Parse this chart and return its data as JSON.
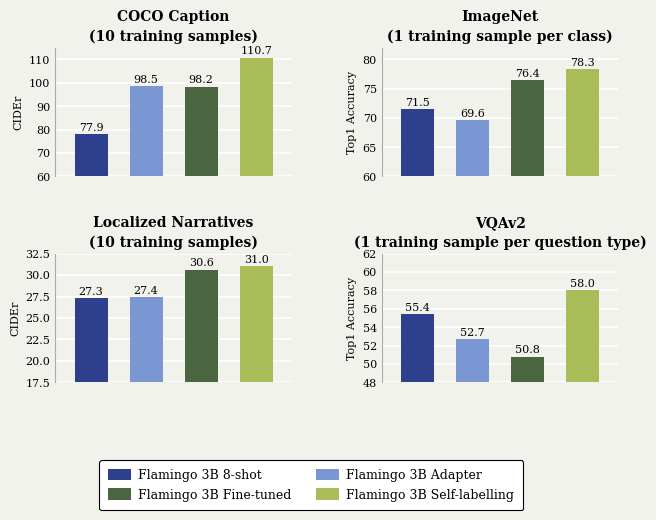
{
  "subplots": [
    {
      "title": "COCO Caption",
      "subtitle": "(10 training samples)",
      "ylabel": "CIDEr",
      "ylim": [
        60,
        115
      ],
      "yticks": [
        60,
        70,
        80,
        90,
        100,
        110
      ],
      "values": [
        77.9,
        98.5,
        98.2,
        110.7
      ],
      "value_labels": [
        "77.9",
        "98.5",
        "98.2",
        "110.7"
      ]
    },
    {
      "title": "ImageNet",
      "subtitle": "(1 training sample per class)",
      "ylabel": "Top1 Accuracy",
      "ylim": [
        60,
        82
      ],
      "yticks": [
        60,
        65,
        70,
        75,
        80
      ],
      "values": [
        71.5,
        69.6,
        76.4,
        78.3
      ],
      "value_labels": [
        "71.5",
        "69.6",
        "76.4",
        "78.3"
      ]
    },
    {
      "title": "Localized Narratives",
      "subtitle": "(10 training samples)",
      "ylabel": "CIDEr",
      "ylim": [
        17.5,
        32.5
      ],
      "yticks": [
        17.5,
        20.0,
        22.5,
        25.0,
        27.5,
        30.0,
        32.5
      ],
      "values": [
        27.3,
        27.4,
        30.6,
        31.0
      ],
      "value_labels": [
        "27.3",
        "27.4",
        "30.6",
        "31.0"
      ]
    },
    {
      "title": "VQAv2",
      "subtitle": "(1 training sample per question type)",
      "ylabel": "Top1 Accuracy",
      "ylim": [
        48,
        62
      ],
      "yticks": [
        48,
        50,
        52,
        54,
        56,
        58,
        60,
        62
      ],
      "values": [
        55.4,
        52.7,
        50.8,
        58.0
      ],
      "value_labels": [
        "55.4",
        "52.7",
        "50.8",
        "58.0"
      ]
    }
  ],
  "bar_colors": [
    "#2e3f8e",
    "#7b97d3",
    "#4a6640",
    "#a8bc58"
  ],
  "legend_labels": [
    "Flamingo 3B 8-shot",
    "Flamingo 3B Adapter",
    "Flamingo 3B Fine-tuned",
    "Flamingo 3B Self-labelling"
  ],
  "background_color": "#f2f2ed",
  "bar_width": 0.6,
  "title_fontsize": 10,
  "subtitle_fontsize": 9,
  "ylabel_fontsize": 8,
  "tick_fontsize": 8,
  "value_fontsize": 8,
  "legend_fontsize": 9
}
